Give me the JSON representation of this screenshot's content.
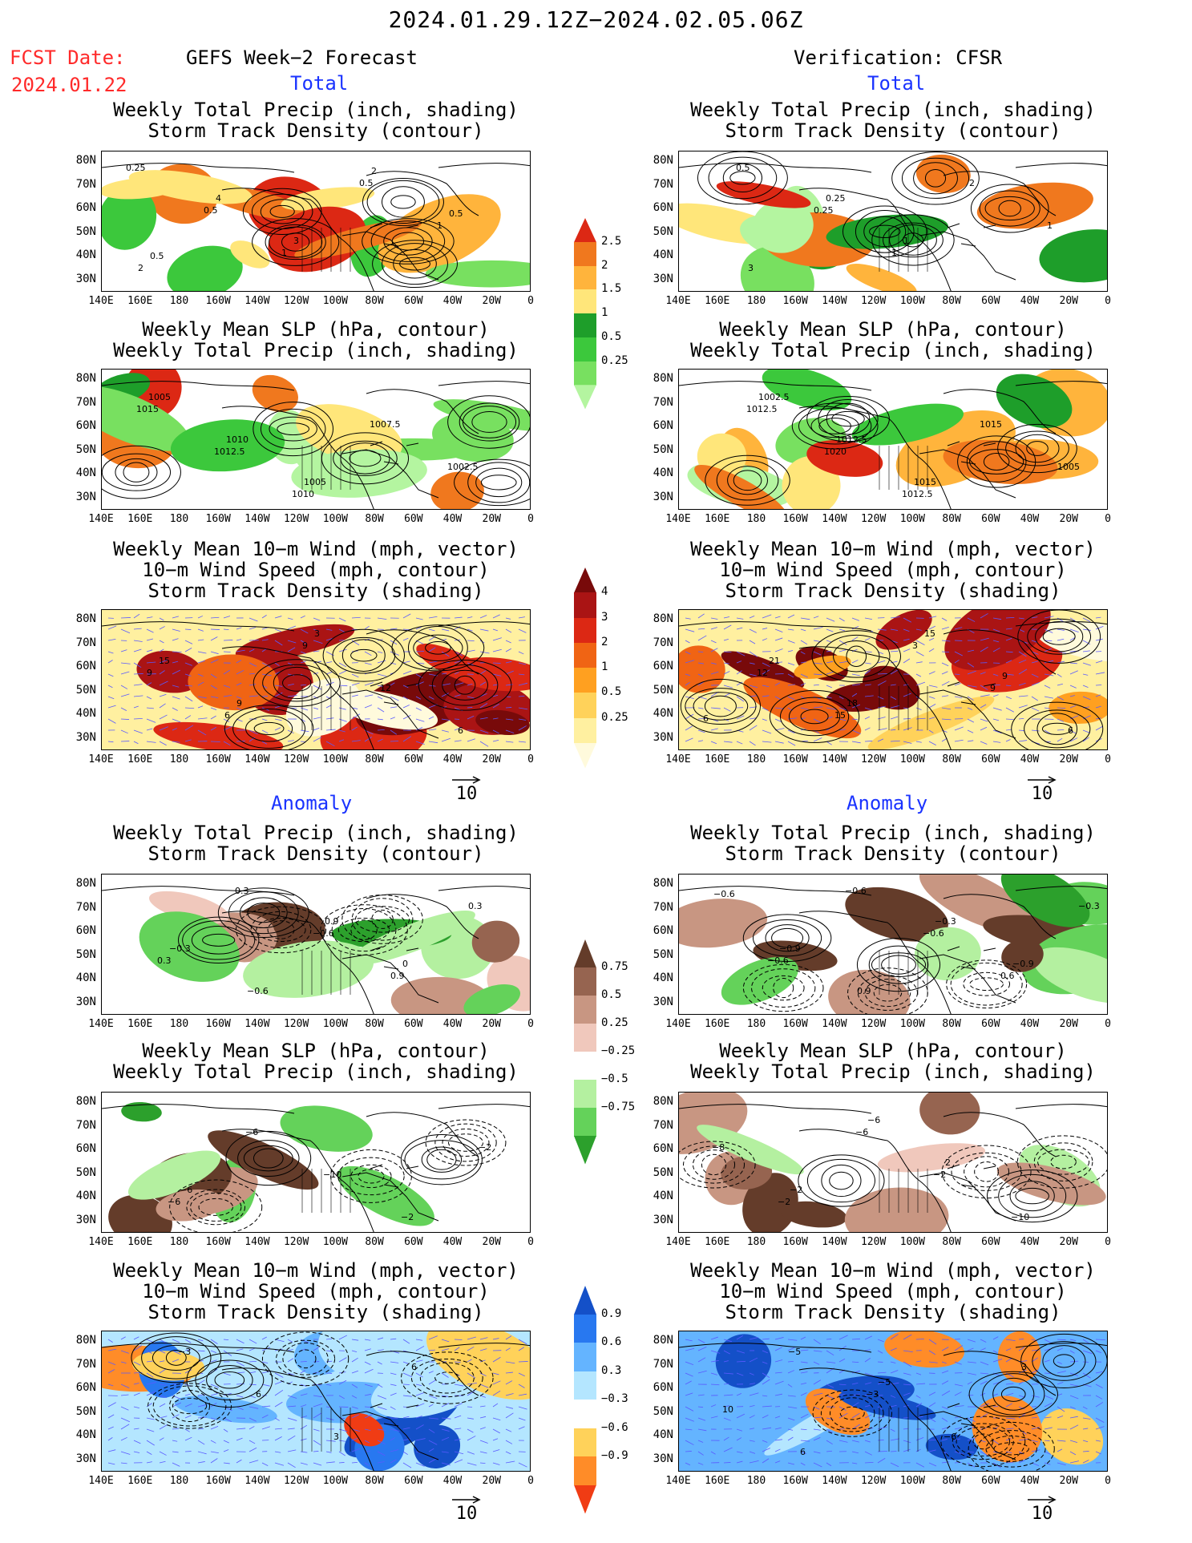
{
  "header": {
    "date_range": "2024.01.29.12Z−2024.02.05.06Z",
    "fcst_label": "FCST Date:",
    "fcst_date": "2024.01.22",
    "left_column_title": "GEFS Week−2 Forecast",
    "right_column_title": "Verification: CFSR",
    "total_label": "Total",
    "anomaly_label": "Anomaly"
  },
  "panel_titles": {
    "precip_storm": "Weekly Total Precip (inch, shading)\nStorm Track Density (contour)",
    "slp_precip": "Weekly Mean SLP (hPa, contour)\nWeekly Total Precip (inch, shading)",
    "wind_storm": "Weekly Mean 10−m Wind (mph, vector)\n10−m Wind Speed (mph, contour)\nStorm Track Density (shading)"
  },
  "axes": {
    "lat_labels": [
      "80N",
      "70N",
      "60N",
      "50N",
      "40N",
      "30N"
    ],
    "lon_labels": [
      "140E",
      "160E",
      "180",
      "160W",
      "140W",
      "120W",
      "100W",
      "80W",
      "60W",
      "40W",
      "20W",
      "0"
    ]
  },
  "colorbars": {
    "total_precip": {
      "labels": [
        "0.25",
        "0.5",
        "1",
        "1.5",
        "2",
        "2.5"
      ],
      "colors": [
        "#b4f5a0",
        "#78e060",
        "#3cc83c",
        "#1e9e2a",
        "#ffe67a",
        "#ffb43c",
        "#f0781e",
        "#dc2814"
      ]
    },
    "total_storm": {
      "labels": [
        "0.25",
        "0.5",
        "1",
        "2",
        "3",
        "4"
      ],
      "colors": [
        "#fffadc",
        "#fff0a0",
        "#ffd25a",
        "#ffa020",
        "#f06414",
        "#dc2814",
        "#aa1414",
        "#780a0a"
      ]
    },
    "anom_precip": {
      "labels": [
        "0.75",
        "0.5",
        "0.25",
        "−0.25",
        "−0.5",
        "−0.75"
      ],
      "colors": [
        "#2ca02c",
        "#64d25a",
        "#b4f0a0",
        "#ffffff",
        "#f0c8bc",
        "#c89682",
        "#966450",
        "#643c2a"
      ]
    },
    "anom_storm": {
      "labels": [
        "0.9",
        "0.6",
        "0.3",
        "−0.3",
        "−0.6",
        "−0.9"
      ],
      "colors": [
        "#f03c14",
        "#ff8c28",
        "#ffd25a",
        "#ffffff",
        "#b4e6ff",
        "#64b4ff",
        "#2878f0",
        "#1450c8"
      ]
    }
  },
  "vector_reference": "10",
  "contour_labels": {
    "lt_precip": [
      "0.25",
      "0.5",
      "1",
      "0.5",
      "1",
      "2",
      "4",
      "3",
      "2",
      "0.5",
      "0.5"
    ],
    "rt_precip": [
      "0.5",
      "0.25",
      "1",
      "2",
      "1",
      "3",
      "0.25",
      "1"
    ],
    "lt_slp": [
      "1015",
      "1012.5",
      "1010",
      "1007.5",
      "1002.5",
      "1005",
      "1010",
      "1005"
    ],
    "rt_slp": [
      "1012.5",
      "1020",
      "1012.5",
      "1015",
      "1005",
      "1002.5",
      "1012.5",
      "1015"
    ],
    "lt_wind": [
      "9",
      "6",
      "9",
      "12",
      "6",
      "15",
      "9",
      "3"
    ],
    "rt_wind": [
      "12",
      "15",
      "3",
      "9",
      "6",
      "21",
      "18",
      "15",
      "9",
      "6"
    ],
    "la_precip": [
      "0.3",
      "0.3",
      "−0.6",
      "0.9",
      "0.3",
      "−0.3",
      "−0.6",
      "0.9",
      "0"
    ],
    "ra_precip": [
      "−0.6",
      "−0.6",
      "−0.6",
      "0.6",
      "−0.3",
      "−0.9",
      "0.9",
      "−0.3",
      "−0.9",
      "−0.6"
    ],
    "la_slp": [
      "−6",
      "−6",
      "−10",
      "−2",
      "−2",
      "−6"
    ],
    "ra_slp": [
      "−2",
      "−6",
      "−2",
      "−10",
      "−8",
      "−2",
      "−6",
      "2"
    ],
    "la_wind": [
      "−3",
      "6",
      "3",
      "6"
    ],
    "ra_wind": [
      "−5",
      "−3",
      "−6",
      "3",
      "10",
      "6",
      "−5"
    ]
  }
}
